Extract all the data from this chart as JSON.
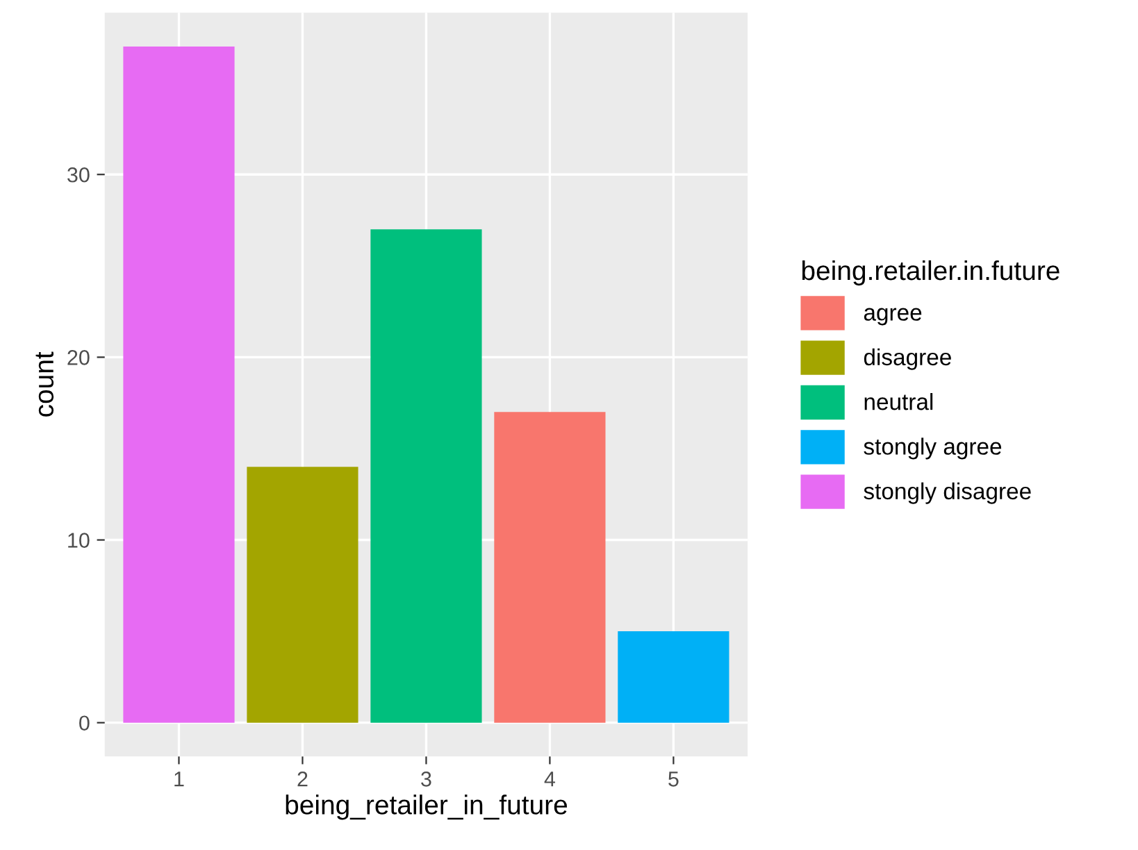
{
  "chart_data": {
    "type": "bar",
    "xlabel": "being_retailer_in_future",
    "ylabel": "count",
    "legend_title": "being.retailer.in.future",
    "x": [
      1,
      2,
      3,
      4,
      5
    ],
    "series": [
      {
        "name": "agree",
        "color": "#f8766d",
        "values": [
          null,
          null,
          null,
          17,
          null
        ]
      },
      {
        "name": "disagree",
        "color": "#a3a500",
        "values": [
          null,
          14,
          null,
          null,
          null
        ]
      },
      {
        "name": "neutral",
        "color": "#00bf7d",
        "values": [
          null,
          null,
          27,
          null,
          null
        ]
      },
      {
        "name": "stongly agree",
        "color": "#00b0f6",
        "values": [
          null,
          null,
          null,
          null,
          5
        ]
      },
      {
        "name": "stongly disagree",
        "color": "#e76bf3",
        "values": [
          37,
          null,
          null,
          null,
          null
        ]
      }
    ],
    "xlim": [
      0.4,
      5.6
    ],
    "ylim": [
      -1.85,
      38.85
    ],
    "xticks": [
      1,
      2,
      3,
      4,
      5
    ],
    "yticks": [
      0,
      10,
      20,
      30
    ],
    "grid": true,
    "legend": "right"
  }
}
